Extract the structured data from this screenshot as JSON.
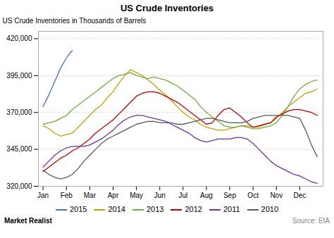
{
  "chart_data": {
    "type": "line",
    "title": "US Crude Inventories",
    "ylabel": "US Crude Inventories in Thousands of Barrels",
    "xlim": [
      -0.2,
      12.0
    ],
    "xticks": [
      {
        "value": 0,
        "label": "Jan"
      },
      {
        "value": 1,
        "label": "Feb"
      },
      {
        "value": 2,
        "label": "Mar"
      },
      {
        "value": 3,
        "label": "Apr"
      },
      {
        "value": 4,
        "label": "May"
      },
      {
        "value": 5,
        "label": "Jun"
      },
      {
        "value": 6,
        "label": "Jul"
      },
      {
        "value": 7,
        "label": "Aug"
      },
      {
        "value": 8,
        "label": "Sep"
      },
      {
        "value": 9,
        "label": "Oct"
      },
      {
        "value": 10,
        "label": "Nov"
      },
      {
        "value": 11,
        "label": "Dec"
      }
    ],
    "ylim": [
      320000,
      425000
    ],
    "yticks": [
      {
        "value": 320000,
        "label": "320,000"
      },
      {
        "value": 345000,
        "label": "345,000"
      },
      {
        "value": 370000,
        "label": "370,000"
      },
      {
        "value": 395000,
        "label": "395,000"
      },
      {
        "value": 420000,
        "label": "420,000"
      }
    ],
    "grid": true,
    "legend": "bottom",
    "annotations": [
      "Market Realist",
      "Source: EIA"
    ],
    "series": [
      {
        "name": "2015",
        "color": "#4472c4",
        "x": [
          0,
          0.25,
          0.5,
          0.75,
          1.0,
          1.25
        ],
        "values": [
          374000,
          382000,
          391000,
          400000,
          407000,
          412000
        ]
      },
      {
        "name": "2014",
        "color": "#c8a000",
        "x": [
          0,
          0.25,
          0.5,
          0.75,
          1,
          1.25,
          1.5,
          1.75,
          2,
          2.25,
          2.5,
          2.75,
          3,
          3.25,
          3.5,
          3.75,
          4,
          4.25,
          4.5,
          4.75,
          5,
          5.25,
          5.5,
          5.75,
          6,
          6.25,
          6.5,
          6.75,
          7,
          7.25,
          7.5,
          7.75,
          8,
          8.25,
          8.5,
          8.75,
          9,
          9.25,
          9.5,
          9.75,
          10,
          10.25,
          10.5,
          10.75,
          11,
          11.25,
          11.5,
          11.75
        ],
        "values": [
          361000,
          359000,
          356000,
          354000,
          355000,
          356000,
          360000,
          364000,
          368000,
          372000,
          375000,
          380000,
          384000,
          390000,
          395000,
          399000,
          397000,
          395000,
          392000,
          389000,
          385000,
          382000,
          378000,
          374000,
          370000,
          367000,
          365000,
          362000,
          360000,
          359000,
          358000,
          358000,
          359000,
          360000,
          361000,
          361000,
          360000,
          360000,
          362000,
          363000,
          366000,
          370000,
          374000,
          377000,
          380000,
          383000,
          384000,
          386000
        ]
      },
      {
        "name": "2013",
        "color": "#70ad47",
        "x": [
          0,
          0.25,
          0.5,
          0.75,
          1,
          1.25,
          1.5,
          1.75,
          2,
          2.25,
          2.5,
          2.75,
          3,
          3.25,
          3.5,
          3.75,
          4,
          4.25,
          4.5,
          4.75,
          5,
          5.25,
          5.5,
          5.75,
          6,
          6.25,
          6.5,
          6.75,
          7,
          7.25,
          7.5,
          7.75,
          8,
          8.25,
          8.5,
          8.75,
          9,
          9.25,
          9.5,
          9.75,
          10,
          10.25,
          10.5,
          10.75,
          11,
          11.25,
          11.5,
          11.75
        ],
        "values": [
          362000,
          363000,
          364000,
          366000,
          368000,
          372000,
          375000,
          378000,
          381000,
          384000,
          387000,
          390000,
          393000,
          395000,
          396000,
          397000,
          395000,
          394000,
          393000,
          394000,
          393000,
          392000,
          390000,
          388000,
          385000,
          382000,
          379000,
          374000,
          370000,
          367000,
          364000,
          361000,
          360000,
          360000,
          361000,
          360000,
          359000,
          359000,
          360000,
          361000,
          363000,
          368000,
          374000,
          381000,
          386000,
          389000,
          391000,
          392000
        ]
      },
      {
        "name": "2012",
        "color": "#c00000",
        "x": [
          0,
          0.25,
          0.5,
          0.75,
          1,
          1.25,
          1.5,
          1.75,
          2,
          2.25,
          2.5,
          2.75,
          3,
          3.25,
          3.5,
          3.75,
          4,
          4.25,
          4.5,
          4.75,
          5,
          5.25,
          5.5,
          5.75,
          6,
          6.25,
          6.5,
          6.75,
          7,
          7.25,
          7.5,
          7.75,
          8,
          8.25,
          8.5,
          8.75,
          9,
          9.25,
          9.5,
          9.75,
          10,
          10.25,
          10.5,
          10.75,
          11,
          11.25,
          11.5,
          11.75
        ],
        "values": [
          330000,
          333000,
          336000,
          339000,
          341000,
          344000,
          346000,
          349000,
          352000,
          356000,
          359000,
          362000,
          365000,
          369000,
          373000,
          377000,
          381000,
          383000,
          384000,
          384000,
          383000,
          381000,
          379000,
          377000,
          374000,
          371000,
          368000,
          365000,
          362000,
          363000,
          368000,
          372000,
          373000,
          370000,
          367000,
          363000,
          360000,
          361000,
          362000,
          363000,
          367000,
          369000,
          371000,
          372000,
          372000,
          371000,
          370000,
          368000
        ]
      },
      {
        "name": "2011",
        "color": "#7030a0",
        "x": [
          0,
          0.25,
          0.5,
          0.75,
          1,
          1.25,
          1.5,
          1.75,
          2,
          2.25,
          2.5,
          2.75,
          3,
          3.25,
          3.5,
          3.75,
          4,
          4.25,
          4.5,
          4.75,
          5,
          5.25,
          5.5,
          5.75,
          6,
          6.25,
          6.5,
          6.75,
          7,
          7.25,
          7.5,
          7.75,
          8,
          8.25,
          8.5,
          8.75,
          9,
          9.25,
          9.5,
          9.75,
          10,
          10.25,
          10.5,
          10.75,
          11,
          11.25,
          11.5,
          11.75
        ],
        "values": [
          333000,
          337000,
          341000,
          344000,
          346000,
          347000,
          347000,
          347000,
          348000,
          350000,
          352000,
          355000,
          358000,
          362000,
          365000,
          367000,
          368000,
          368000,
          367000,
          366000,
          365000,
          364000,
          362000,
          360000,
          358000,
          356000,
          353000,
          351000,
          350000,
          351000,
          352000,
          352000,
          352000,
          353000,
          353000,
          352000,
          349000,
          345000,
          341000,
          337000,
          334000,
          332000,
          330000,
          328000,
          327000,
          325000,
          323000,
          322000
        ]
      },
      {
        "name": "2010",
        "color": "#595959",
        "x": [
          0,
          0.25,
          0.5,
          0.75,
          1,
          1.25,
          1.5,
          1.75,
          2,
          2.25,
          2.5,
          2.75,
          3,
          3.25,
          3.5,
          3.75,
          4,
          4.25,
          4.5,
          4.75,
          5,
          5.25,
          5.5,
          5.75,
          6,
          6.25,
          6.5,
          6.75,
          7,
          7.25,
          7.5,
          7.75,
          8,
          8.25,
          8.5,
          8.75,
          9,
          9.25,
          9.5,
          9.75,
          10,
          10.25,
          10.5,
          10.75,
          11,
          11.25,
          11.5,
          11.75
        ],
        "values": [
          331000,
          328000,
          326000,
          325000,
          326000,
          328000,
          332000,
          337000,
          341000,
          345000,
          349000,
          352000,
          354000,
          356000,
          358000,
          360000,
          362000,
          363000,
          364000,
          364000,
          363000,
          363000,
          363000,
          362000,
          362000,
          363000,
          364000,
          365000,
          366000,
          366000,
          365000,
          364000,
          363000,
          363000,
          363000,
          364000,
          366000,
          367000,
          368000,
          368000,
          368000,
          368000,
          368000,
          367000,
          366000,
          358000,
          348000,
          340000
        ]
      }
    ]
  }
}
